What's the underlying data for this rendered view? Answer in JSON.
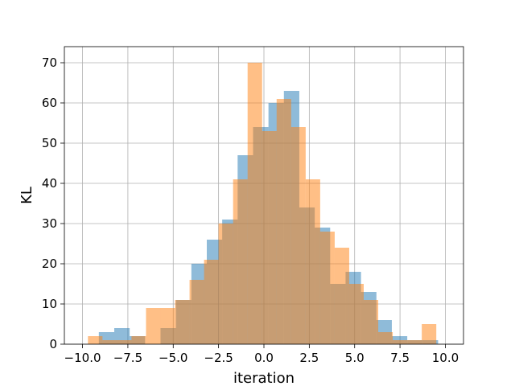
{
  "chart_data": {
    "type": "bar",
    "xlabel": "iteration",
    "ylabel": "KL",
    "xlim": [
      -11.0,
      11.0
    ],
    "ylim": [
      0,
      74
    ],
    "xticks": [
      -10.0,
      -7.5,
      -5.0,
      -2.5,
      0.0,
      2.5,
      5.0,
      7.5,
      10.0
    ],
    "xtick_labels": [
      "−10.0",
      "−7.5",
      "−5.0",
      "−2.5",
      "0.0",
      "2.5",
      "5.0",
      "7.5",
      "10.0"
    ],
    "yticks": [
      0,
      10,
      20,
      30,
      40,
      50,
      60,
      70
    ],
    "ytick_labels": [
      "0",
      "10",
      "20",
      "30",
      "40",
      "50",
      "60",
      "70"
    ],
    "grid": true,
    "series": [
      {
        "color": "#1f77b4",
        "opacity": 0.5,
        "bins": [
          -9.1,
          -8.25,
          -7.4,
          -6.55,
          -5.7,
          -4.85,
          -4.0,
          -3.15,
          -2.3,
          -1.45,
          -0.6,
          0.25,
          1.1,
          1.95,
          2.8,
          3.65,
          4.5,
          5.35,
          6.2,
          7.05,
          7.9,
          8.75,
          9.6
        ],
        "values": [
          3,
          4,
          2,
          0,
          4,
          11,
          20,
          26,
          31,
          47,
          54,
          60,
          63,
          34,
          29,
          15,
          18,
          13,
          6,
          2,
          1,
          1,
          2
        ]
      },
      {
        "color": "#ff7f0e",
        "opacity": 0.5,
        "bins": [
          -9.7,
          -8.9,
          -8.1,
          -7.3,
          -6.5,
          -5.7,
          -4.9,
          -4.1,
          -3.3,
          -2.5,
          -1.7,
          -0.9,
          -0.1,
          0.7,
          1.5,
          2.3,
          3.1,
          3.9,
          4.7,
          5.5,
          6.3,
          7.1,
          7.9,
          8.7,
          9.5
        ],
        "values": [
          2,
          1,
          1,
          2,
          9,
          9,
          11,
          16,
          21,
          30,
          41,
          70,
          53,
          61,
          54,
          41,
          28,
          24,
          15,
          11,
          3,
          1,
          1,
          5,
          2
        ]
      }
    ]
  }
}
